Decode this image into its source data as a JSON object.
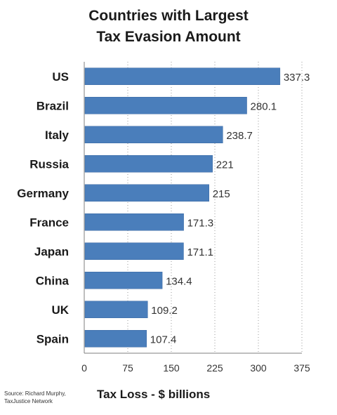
{
  "chart_data": {
    "type": "bar",
    "orientation": "horizontal",
    "title_line1": "Countries with Largest",
    "title_line2": "Tax Evasion Amount",
    "xlabel": "Tax Loss - $ billions",
    "ylabel": "",
    "categories": [
      "US",
      "Brazil",
      "Italy",
      "Russia",
      "Germany",
      "France",
      "Japan",
      "China",
      "UK",
      "Spain"
    ],
    "values": [
      337.3,
      280.1,
      238.7,
      221,
      215,
      171.3,
      171.1,
      134.4,
      109.2,
      107.4
    ],
    "value_labels": [
      "337.3",
      "280.1",
      "238.7",
      "221",
      "215",
      "171.3",
      "171.1",
      "134.4",
      "109.2",
      "107.4"
    ],
    "xticks": [
      0,
      75,
      150,
      225,
      300,
      375
    ],
    "xlim": [
      0,
      375
    ],
    "grid": "vertical-dotted",
    "bar_color": "#4a7ebb",
    "source_line1": "Source: Richard Murphy,",
    "source_line2": "TaxJustice Network"
  }
}
